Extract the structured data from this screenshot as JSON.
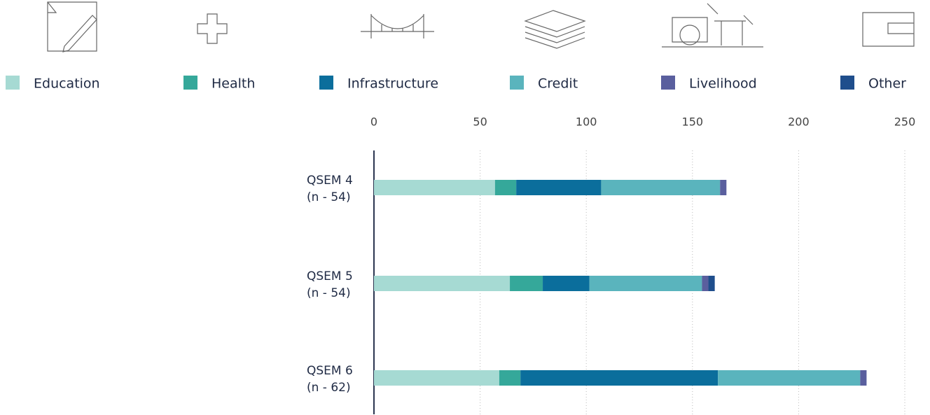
{
  "chart_data": {
    "type": "stacked-bar-horizontal",
    "categories": [
      "QSEM 4",
      "QSEM 5",
      "QSEM 6"
    ],
    "category_notes": [
      "(n - 54)",
      "(n - 54)",
      "(n - 62)"
    ],
    "series": [
      {
        "name": "Education",
        "color": "#a6dad3",
        "values": [
          57,
          64,
          59
        ]
      },
      {
        "name": "Health",
        "color": "#35a89a",
        "values": [
          10,
          15.5,
          10
        ]
      },
      {
        "name": "Infrastructure",
        "color": "#0b6e9c",
        "values": [
          40,
          22,
          93
        ]
      },
      {
        "name": "Credit",
        "color": "#5ab4bd",
        "values": [
          56,
          53,
          67
        ]
      },
      {
        "name": "Livelihood",
        "color": "#5a5f9e",
        "values": [
          3,
          3,
          3
        ]
      },
      {
        "name": "Other",
        "color": "#1f4e8c",
        "values": [
          0,
          3,
          0
        ]
      }
    ],
    "xlim": [
      0,
      250
    ],
    "xticks": [
      0,
      50,
      100,
      150,
      200,
      250
    ],
    "grid": true
  }
}
